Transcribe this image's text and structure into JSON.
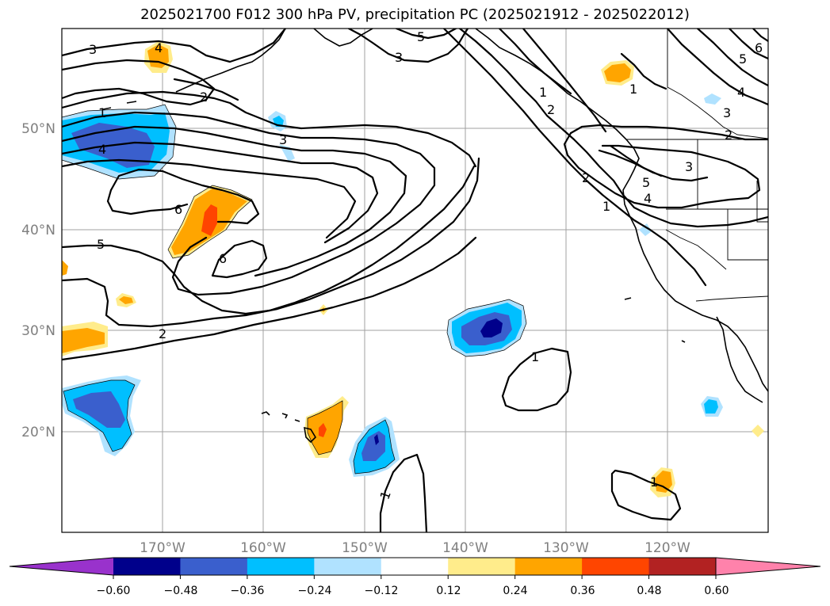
{
  "title": "2025021700 F012 300 hPa PV, precipitation PC (2025021912 - 2025022012)",
  "axes": {
    "lat_ticks": [
      "50°N",
      "40°N",
      "30°N",
      "20°N"
    ],
    "lon_ticks": [
      "170°W",
      "160°W",
      "150°W",
      "140°W",
      "130°W",
      "120°W"
    ]
  },
  "contour_labels": [
    "3",
    "4",
    "2",
    "1",
    "4",
    "6",
    "5",
    "6",
    "2",
    "3",
    "5",
    "3",
    "2",
    "1",
    "2",
    "1",
    "3",
    "5",
    "4",
    "2",
    "1",
    "1",
    "5",
    "6",
    "4",
    "3",
    "1"
  ],
  "colorbar": {
    "ticks": [
      "−0.60",
      "−0.48",
      "−0.36",
      "−0.24",
      "−0.12",
      "0.12",
      "0.24",
      "0.36",
      "0.48",
      "0.60"
    ],
    "colors": [
      "#9932cc",
      "#00008b",
      "#3a5fcd",
      "#00bfff",
      "#b0e2ff",
      "#ffffff",
      "#ffec8b",
      "#ffa500",
      "#ff4500",
      "#b22222",
      "#ff82ab"
    ]
  }
}
